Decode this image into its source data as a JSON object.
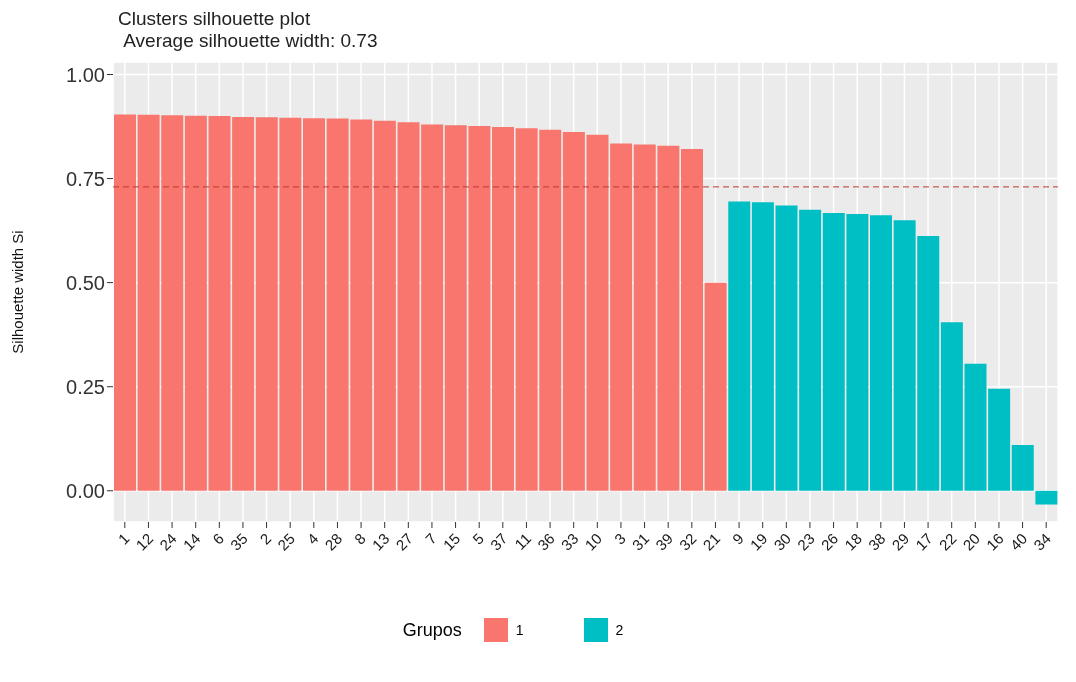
{
  "chart_data": {
    "type": "bar",
    "title": "Clusters silhouette plot",
    "subtitle": "Average silhouette width: 0.73",
    "ylabel": "Silhouette width Si",
    "legend_title": "Grupos",
    "categories": [
      "1",
      "12",
      "24",
      "14",
      "6",
      "35",
      "2",
      "25",
      "4",
      "28",
      "8",
      "13",
      "27",
      "7",
      "15",
      "5",
      "37",
      "11",
      "36",
      "33",
      "10",
      "3",
      "31",
      "39",
      "32",
      "21",
      "9",
      "19",
      "30",
      "23",
      "26",
      "18",
      "38",
      "29",
      "17",
      "22",
      "20",
      "16",
      "40",
      "34"
    ],
    "series": [
      {
        "name": "1",
        "color": "#f8766d",
        "values": [
          0.904,
          0.903,
          0.902,
          0.901,
          0.9,
          0.898,
          0.897,
          0.896,
          0.895,
          0.894,
          0.892,
          0.889,
          0.885,
          0.88,
          0.878,
          0.876,
          0.874,
          0.871,
          0.867,
          0.862,
          0.855,
          0.834,
          0.832,
          0.829,
          0.821,
          0.5,
          null,
          null,
          null,
          null,
          null,
          null,
          null,
          null,
          null,
          null,
          null,
          null,
          null,
          null
        ]
      },
      {
        "name": "2",
        "color": "#00bfc4",
        "values": [
          null,
          null,
          null,
          null,
          null,
          null,
          null,
          null,
          null,
          null,
          null,
          null,
          null,
          null,
          null,
          null,
          null,
          null,
          null,
          null,
          null,
          null,
          null,
          null,
          null,
          null,
          0.695,
          0.693,
          0.685,
          0.675,
          0.667,
          0.665,
          0.662,
          0.65,
          0.612,
          0.405,
          0.305,
          0.245,
          0.11,
          -0.033
        ]
      }
    ],
    "stacked": true,
    "ylim": [
      -0.075,
      1.03
    ],
    "yticks": [
      {
        "value": 0,
        "label": "0.00"
      },
      {
        "value": 0.25,
        "label": "0.25"
      },
      {
        "value": 0.5,
        "label": "0.50"
      },
      {
        "value": 0.75,
        "label": "0.75"
      },
      {
        "value": 1,
        "label": "1.00"
      }
    ],
    "ref_lines": [
      {
        "axis": "y",
        "value": 0.73,
        "color": "#c0392b",
        "line_style": "dashed"
      }
    ],
    "grid": true,
    "legend": "bottom"
  }
}
